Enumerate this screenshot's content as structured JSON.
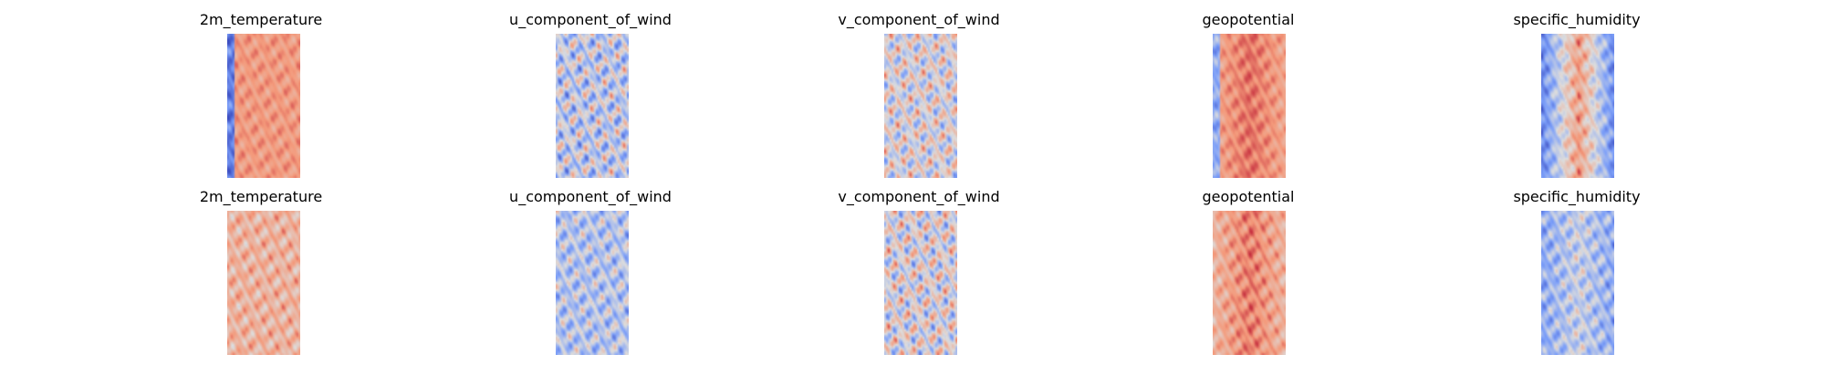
{
  "figure": {
    "colormap": "coolwarm",
    "axes_visible": false,
    "rows": [
      {
        "panels": [
          {
            "title": "2m_temperature",
            "field": "2m_temperature"
          },
          {
            "title": "u_component_of_wind",
            "field": "u_component_of_wind"
          },
          {
            "title": "v_component_of_wind",
            "field": "v_component_of_wind"
          },
          {
            "title": "geopotential",
            "field": "geopotential"
          },
          {
            "title": "specific_humidity",
            "field": "specific_humidity"
          }
        ]
      },
      {
        "panels": [
          {
            "title": "2m_temperature",
            "field": "2m_temperature"
          },
          {
            "title": "u_component_of_wind",
            "field": "u_component_of_wind"
          },
          {
            "title": "v_component_of_wind",
            "field": "v_component_of_wind"
          },
          {
            "title": "geopotential",
            "field": "geopotential"
          },
          {
            "title": "specific_humidity",
            "field": "specific_humidity"
          }
        ]
      }
    ]
  }
}
